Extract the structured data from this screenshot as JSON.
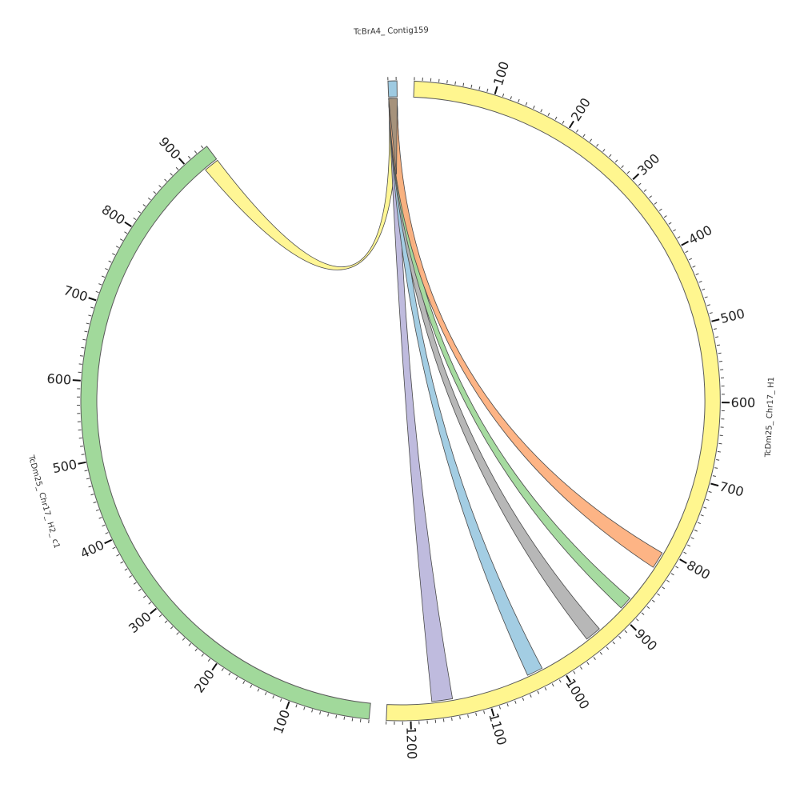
{
  "chart_data": {
    "type": "chord",
    "title": "",
    "sequences": [
      {
        "id": "contig159",
        "name": "TcBrA4_ Contig159",
        "length": 11,
        "color": "#9ecae1",
        "ticks": []
      },
      {
        "id": "h1",
        "name": "TcDm25_ Chr17_ H1",
        "length": 1230,
        "color": "#fff68f",
        "ticks": [
          "100",
          "200",
          "300",
          "400",
          "500",
          "600",
          "700",
          "800",
          "900",
          "1000",
          "1100",
          "1200"
        ]
      },
      {
        "id": "h2c1",
        "name": "TcDm25_ Chr17_ H2_ c1",
        "length": 935,
        "color": "#a1d99b",
        "ticks": [
          "100",
          "200",
          "300",
          "400",
          "500",
          "600",
          "700",
          "800",
          "900"
        ]
      }
    ],
    "links": [
      {
        "from": "contig159",
        "from_start": 0,
        "from_end": 11,
        "to": "h2c1",
        "to_start": 915,
        "to_end": 935,
        "color": "#fff68f"
      },
      {
        "from": "contig159",
        "from_start": 0,
        "from_end": 11,
        "to": "h1",
        "to_start": 1145,
        "to_end": 1172,
        "color": "#bcb7dc"
      },
      {
        "from": "contig159",
        "from_start": 0,
        "from_end": 11,
        "to": "h1",
        "to_start": 1022,
        "to_end": 1043,
        "color": "#9ecae1"
      },
      {
        "from": "contig159",
        "from_start": 0,
        "from_end": 11,
        "to": "h1",
        "to_start": 932,
        "to_end": 953,
        "color": "#b3b3b3"
      },
      {
        "from": "contig159",
        "from_start": 0,
        "from_end": 11,
        "to": "h1",
        "to_start": 876,
        "to_end": 893,
        "color": "#a1d99b"
      },
      {
        "from": "contig159",
        "from_start": 0,
        "from_end": 11,
        "to": "h1",
        "to_start": 804,
        "to_end": 826,
        "color": "#fdb07e"
      }
    ],
    "overlap_color": "#a6927b"
  }
}
